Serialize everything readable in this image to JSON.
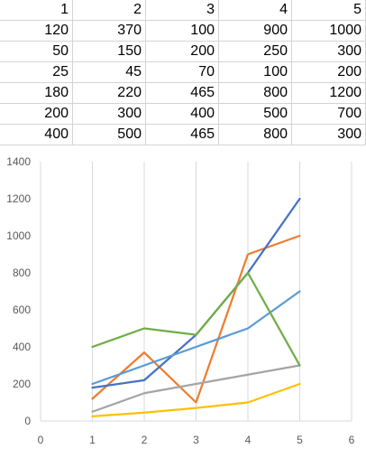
{
  "sheet": {
    "rows": [
      [
        "1",
        "2",
        "3",
        "4",
        "5"
      ],
      [
        "120",
        "370",
        "100",
        "900",
        "1000"
      ],
      [
        "50",
        "150",
        "200",
        "250",
        "300"
      ],
      [
        "25",
        "45",
        "70",
        "100",
        "200"
      ],
      [
        "180",
        "220",
        "465",
        "800",
        "1200"
      ],
      [
        "200",
        "300",
        "400",
        "500",
        "700"
      ],
      [
        "400",
        "500",
        "465",
        "800",
        "300"
      ]
    ]
  },
  "chart_data": {
    "type": "scatter",
    "x": [
      1,
      2,
      3,
      4,
      5
    ],
    "xlim": [
      0,
      6
    ],
    "ylim": [
      0,
      1400
    ],
    "xticks": [
      "0",
      "1",
      "2",
      "3",
      "4",
      "5",
      "6"
    ],
    "yticks": [
      "0",
      "200",
      "400",
      "600",
      "800",
      "1000",
      "1200",
      "1400"
    ],
    "grid": "vertical",
    "series": [
      {
        "values": [
          120,
          370,
          100,
          900,
          1000
        ],
        "color": "#ED7D31"
      },
      {
        "values": [
          50,
          150,
          200,
          250,
          300
        ],
        "color": "#A5A5A5"
      },
      {
        "values": [
          25,
          45,
          70,
          100,
          200
        ],
        "color": "#FFC000"
      },
      {
        "values": [
          180,
          220,
          465,
          800,
          1200
        ],
        "color": "#4472C4"
      },
      {
        "values": [
          200,
          300,
          400,
          500,
          700
        ],
        "color": "#5B9BD5"
      },
      {
        "values": [
          400,
          500,
          465,
          800,
          300
        ],
        "color": "#70AD47"
      }
    ]
  }
}
